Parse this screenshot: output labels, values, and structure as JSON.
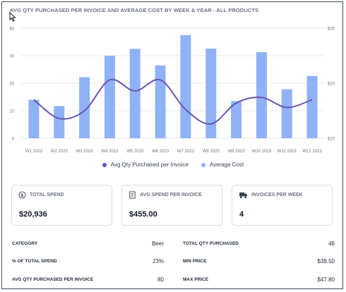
{
  "chart_title": "AVG QTY PURCHASED PER INVOICE AND AVERAGE COST BY WEEK & YEAR -  ALL PRODUCTS",
  "colors": {
    "bar": "#8fb2f7",
    "line": "#6b52b3",
    "grid": "#e5e7eb",
    "axis_text": "#6b7280"
  },
  "chart_data": {
    "type": "bar",
    "categories": [
      "W1 2023",
      "W2 2023",
      "W3 2023",
      "W4 2023",
      "W5 2023",
      "W6 2023",
      "W7 2023",
      "W9 2023",
      "W8 2023",
      "W10 2023",
      "W11 2023",
      "W12 2023"
    ],
    "series": [
      {
        "name": "Avg Qty Purchased per Invoice",
        "type": "line",
        "axis": "right",
        "values": [
          18.5,
          16.8,
          17.5,
          20.3,
          19.3,
          20.3,
          17.6,
          16.3,
          18.2,
          18.7,
          17.8,
          18.5
        ]
      },
      {
        "name": "Average Cost",
        "type": "bar",
        "axis": "left",
        "values": [
          14,
          11.7,
          22.2,
          30,
          32.5,
          26.5,
          37.5,
          32.6,
          13.5,
          31.3,
          17.8,
          22.6
        ]
      }
    ],
    "y_left": {
      "ticks": [
        "0",
        "10",
        "20",
        "30",
        "40"
      ],
      "ylim": [
        0,
        40
      ]
    },
    "y_right": {
      "ticks": [
        "$15",
        "$20",
        "$25"
      ],
      "ylim": [
        15,
        25
      ]
    },
    "legend_position": "bottom"
  },
  "kpis": [
    {
      "label": "TOTAL SPEND",
      "value": "$20,936",
      "icon": "dollar-circle-icon"
    },
    {
      "label": "AVG SPEND PER INVOICE",
      "value": "$455.00",
      "icon": "receipt-icon"
    },
    {
      "label": "INVOICES PER WEEK",
      "value": "4",
      "icon": "truck-icon"
    }
  ],
  "details_left": [
    {
      "label": "CATEGORY",
      "value": "Beer"
    },
    {
      "label": "% OF TOTAL SPEND",
      "value": "23%"
    },
    {
      "label": "AVG QTY PURCHASED PER INVOICE",
      "value": "80"
    }
  ],
  "details_right": [
    {
      "label": "TOTAL QTY PURCHASED",
      "value": "46"
    },
    {
      "label": "MIN PRICE",
      "value": "$38.50"
    },
    {
      "label": "MAX PRICE",
      "value": "$47.80"
    }
  ]
}
